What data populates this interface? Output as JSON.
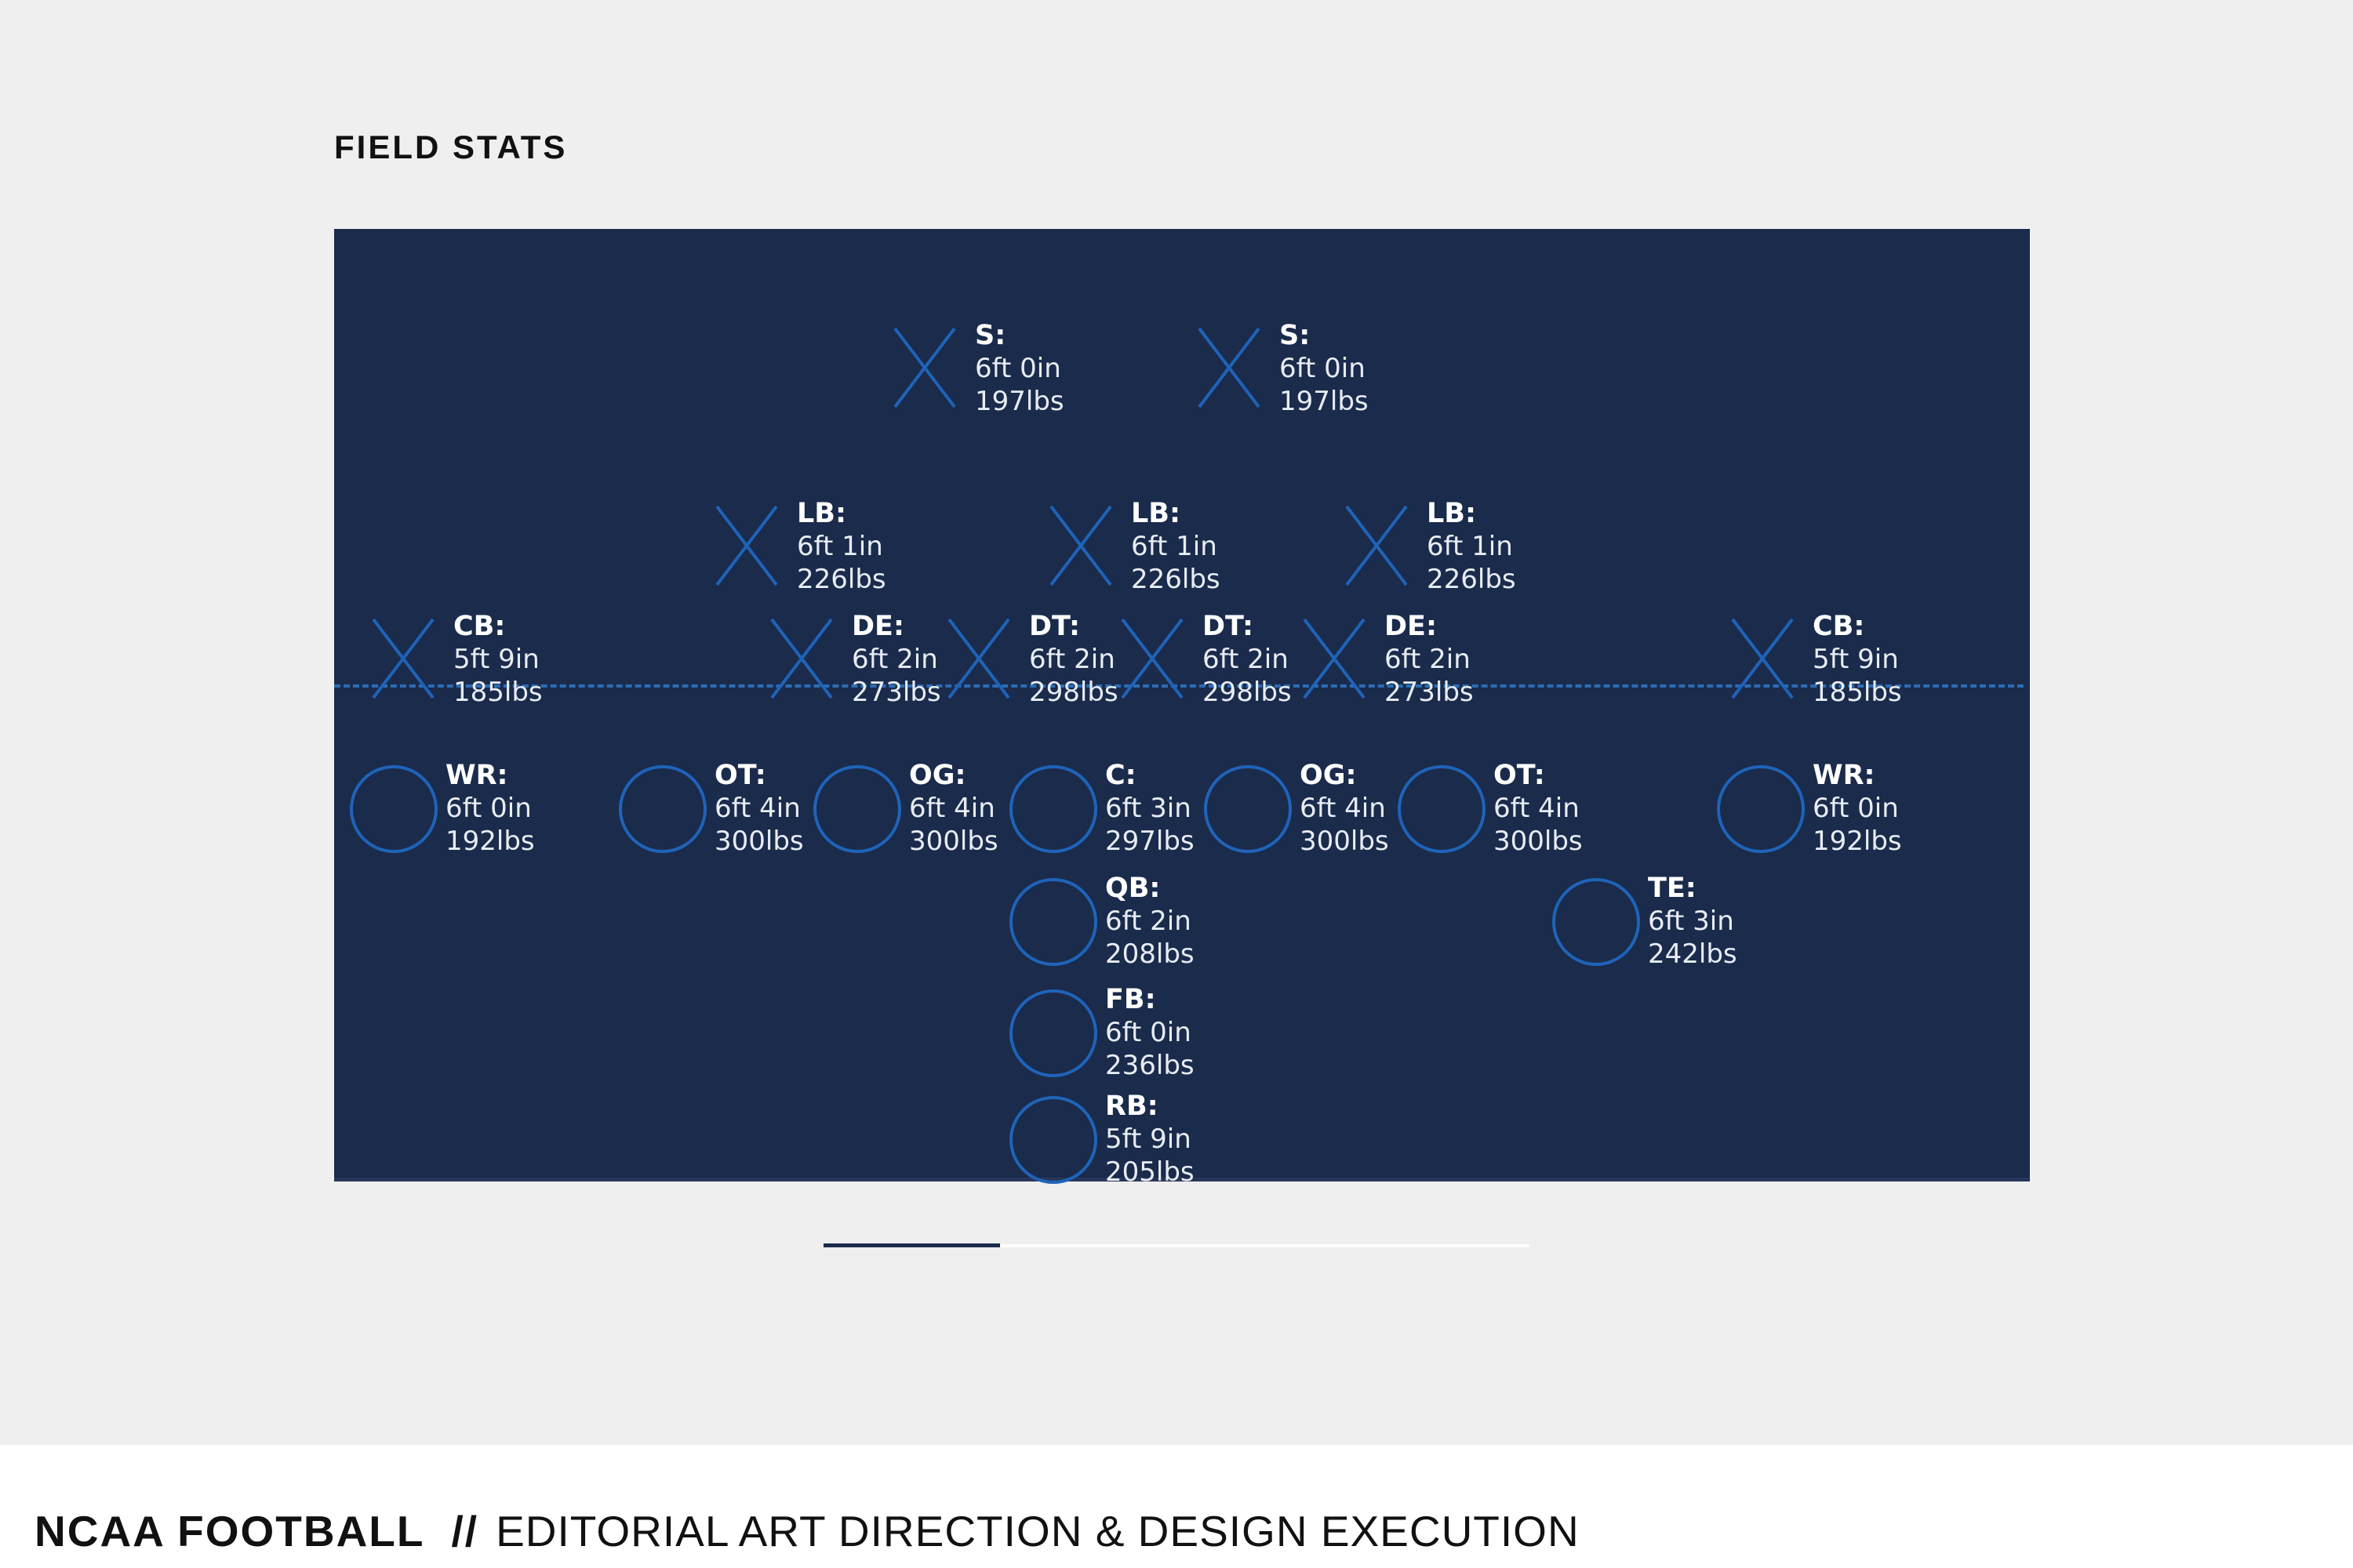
{
  "header": {
    "title": "FIELD STATS"
  },
  "colors": {
    "field": "#1a2b4c",
    "marker": "#1f63b8",
    "los": "#2b6db5",
    "page": "#efefef"
  },
  "defense": [
    {
      "pos": "S:",
      "height": "6ft 0in",
      "weight": "197lbs",
      "icon": "x-marker-icon"
    },
    {
      "pos": "S:",
      "height": "6ft 0in",
      "weight": "197lbs",
      "icon": "x-marker-icon"
    },
    {
      "pos": "LB:",
      "height": "6ft 1in",
      "weight": "226lbs",
      "icon": "x-marker-icon"
    },
    {
      "pos": "LB:",
      "height": "6ft 1in",
      "weight": "226lbs",
      "icon": "x-marker-icon"
    },
    {
      "pos": "LB:",
      "height": "6ft 1in",
      "weight": "226lbs",
      "icon": "x-marker-icon"
    },
    {
      "pos": "CB:",
      "height": "5ft 9in",
      "weight": "185lbs",
      "icon": "x-marker-icon"
    },
    {
      "pos": "DE:",
      "height": "6ft 2in",
      "weight": "273lbs",
      "icon": "x-marker-icon"
    },
    {
      "pos": "DT:",
      "height": "6ft 2in",
      "weight": "298lbs",
      "icon": "x-marker-icon"
    },
    {
      "pos": "DT:",
      "height": "6ft 2in",
      "weight": "298lbs",
      "icon": "x-marker-icon"
    },
    {
      "pos": "DE:",
      "height": "6ft 2in",
      "weight": "273lbs",
      "icon": "x-marker-icon"
    },
    {
      "pos": "CB:",
      "height": "5ft 9in",
      "weight": "185lbs",
      "icon": "x-marker-icon"
    }
  ],
  "offense": [
    {
      "pos": "WR:",
      "height": "6ft 0in",
      "weight": "192lbs",
      "icon": "circle-marker-icon"
    },
    {
      "pos": "OT:",
      "height": "6ft 4in",
      "weight": "300lbs",
      "icon": "circle-marker-icon"
    },
    {
      "pos": "OG:",
      "height": "6ft 4in",
      "weight": "300lbs",
      "icon": "circle-marker-icon"
    },
    {
      "pos": "C:",
      "height": "6ft 3in",
      "weight": "297lbs",
      "icon": "circle-marker-icon"
    },
    {
      "pos": "OG:",
      "height": "6ft 4in",
      "weight": "300lbs",
      "icon": "circle-marker-icon"
    },
    {
      "pos": "OT:",
      "height": "6ft 4in",
      "weight": "300lbs",
      "icon": "circle-marker-icon"
    },
    {
      "pos": "WR:",
      "height": "6ft 0in",
      "weight": "192lbs",
      "icon": "circle-marker-icon"
    },
    {
      "pos": "QB:",
      "height": "6ft 2in",
      "weight": "208lbs",
      "icon": "circle-marker-icon"
    },
    {
      "pos": "TE:",
      "height": "6ft 3in",
      "weight": "242lbs",
      "icon": "circle-marker-icon"
    },
    {
      "pos": "FB:",
      "height": "6ft 0in",
      "weight": "236lbs",
      "icon": "circle-marker-icon"
    },
    {
      "pos": "RB:",
      "height": "5ft 9in",
      "weight": "205lbs",
      "icon": "circle-marker-icon"
    }
  ],
  "carousel": {
    "current": 1,
    "total": 4
  },
  "footer": {
    "brand": "NCAA FOOTBALL",
    "separator": "//",
    "description": "EDITORIAL ART DIRECTION & DESIGN EXECUTION"
  }
}
